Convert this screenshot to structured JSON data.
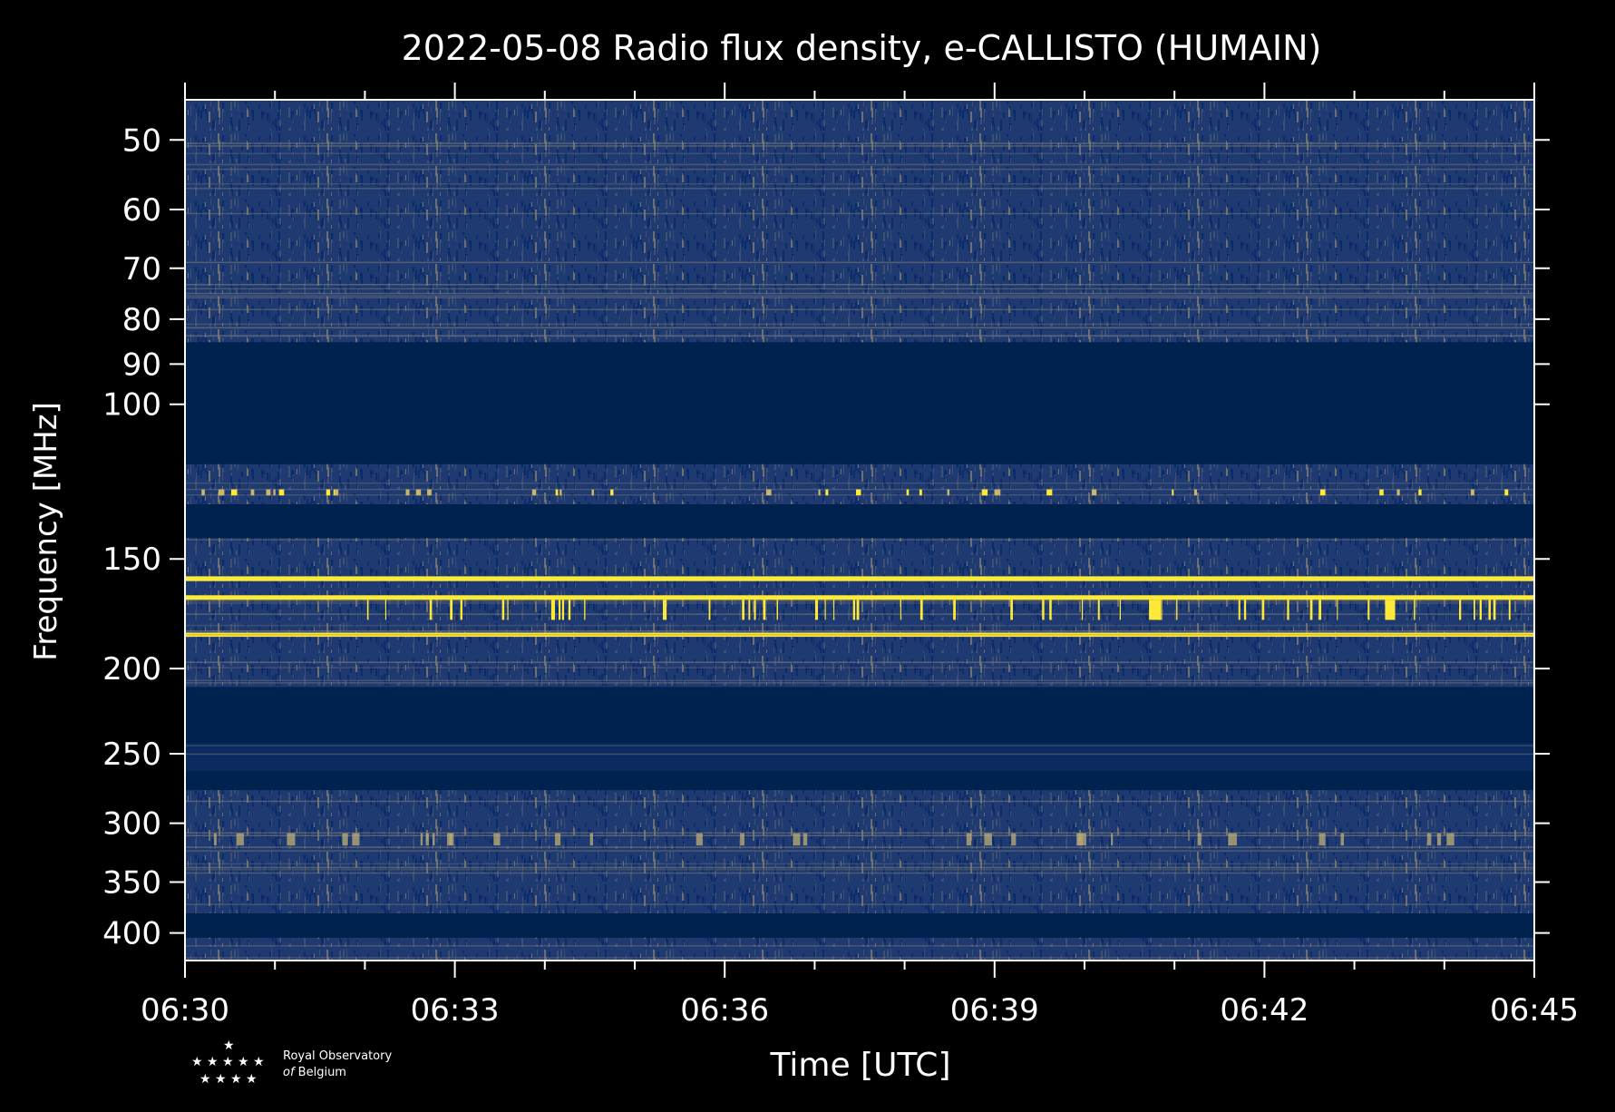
{
  "chart_data": {
    "type": "heatmap",
    "title": "2022-05-08 Radio flux density, e-CALLISTO (HUMAIN)",
    "xlabel": "Time [UTC]",
    "ylabel": "Frequency [MHz]",
    "x_ticks": [
      "06:30",
      "06:33",
      "06:36",
      "06:39",
      "06:42",
      "06:45"
    ],
    "x_range_minutes": [
      0,
      15
    ],
    "y_scale": "log",
    "y_range": [
      45,
      430
    ],
    "y_ticks": [
      50,
      60,
      70,
      80,
      90,
      100,
      150,
      200,
      250,
      300,
      350,
      400
    ],
    "colormap": [
      "#00224e",
      "#7d7c78",
      "#fee838"
    ],
    "bands": [
      {
        "f_low": 45,
        "f_high": 85,
        "level": "noise"
      },
      {
        "f_low": 85,
        "f_high": 117,
        "level": "masked"
      },
      {
        "f_low": 117,
        "f_high": 130,
        "level": "noise-bright"
      },
      {
        "f_low": 130,
        "f_high": 142,
        "level": "masked"
      },
      {
        "f_low": 142,
        "f_high": 210,
        "level": "noise"
      },
      {
        "f_low": 157,
        "f_high": 159,
        "level": "saturated"
      },
      {
        "f_low": 165,
        "f_high": 167,
        "level": "saturated"
      },
      {
        "f_low": 182,
        "f_high": 184,
        "level": "saturated"
      },
      {
        "f_low": 210,
        "f_high": 243,
        "level": "masked"
      },
      {
        "f_low": 243,
        "f_high": 262,
        "level": "noise-faint"
      },
      {
        "f_low": 262,
        "f_high": 275,
        "level": "masked"
      },
      {
        "f_low": 275,
        "f_high": 380,
        "level": "noise"
      },
      {
        "f_low": 380,
        "f_high": 405,
        "level": "masked"
      },
      {
        "f_low": 405,
        "f_high": 430,
        "level": "noise"
      }
    ]
  },
  "logo": {
    "line1": "Royal Observatory",
    "line2_italic": "of",
    "line2": "Belgium"
  }
}
